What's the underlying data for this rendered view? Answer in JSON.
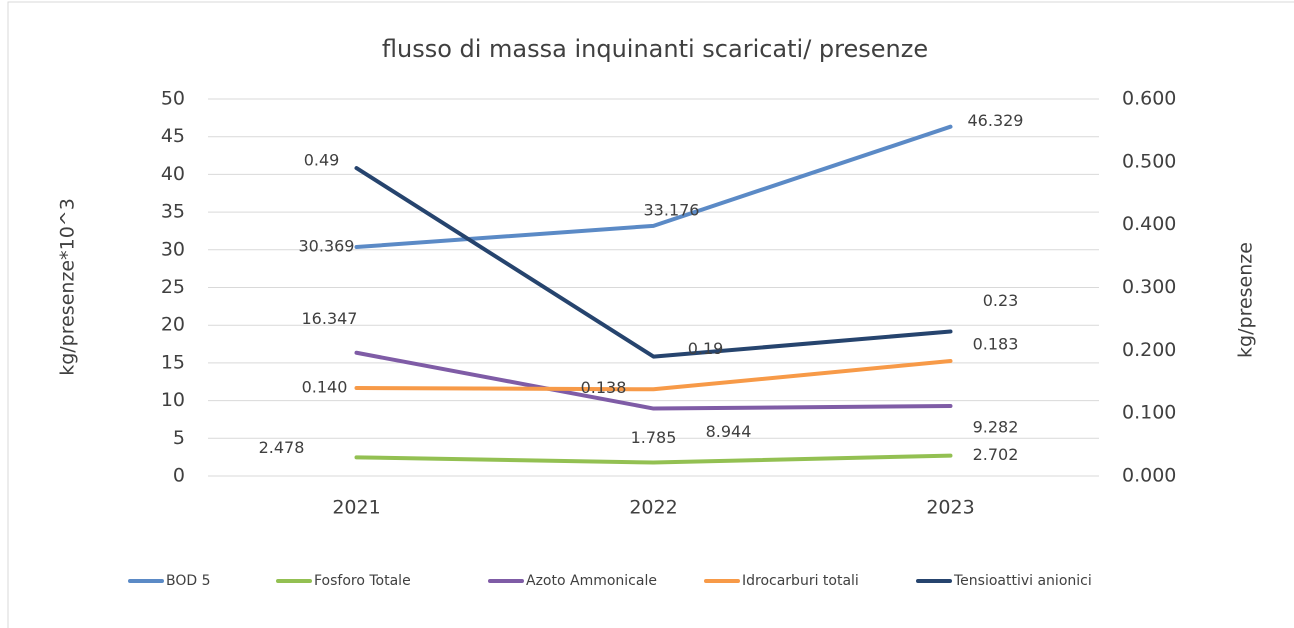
{
  "chart_data": {
    "type": "line",
    "title": "flusso di massa inquinanti scaricati/ presenze",
    "y_label": "kg/presenze*10^3",
    "y2_label": "kg/presenze",
    "categories": [
      "2021",
      "2022",
      "2023"
    ],
    "ylim": [
      0,
      50
    ],
    "yticks": [
      0,
      5,
      10,
      15,
      20,
      25,
      30,
      35,
      40,
      45,
      50
    ],
    "y2lim": [
      0,
      0.6
    ],
    "y2ticks": [
      {
        "value": 0,
        "label": "0.000"
      },
      {
        "value": 0.1,
        "label": "0.100"
      },
      {
        "value": 0.2,
        "label": "0.200"
      },
      {
        "value": 0.3,
        "label": "0.300"
      },
      {
        "value": 0.4,
        "label": "0.400"
      },
      {
        "value": 0.5,
        "label": "0.500"
      },
      {
        "value": 0.6,
        "label": "0.600"
      }
    ],
    "grid": true,
    "legend": "bottom",
    "series": [
      {
        "name": "BOD 5",
        "color": "#5b8ac6",
        "values": [
          30.369,
          33.176,
          46.329
        ]
      },
      {
        "name": "Fosforo Totale",
        "color": "#93c052",
        "values": [
          2.478,
          1.785,
          2.702
        ]
      },
      {
        "name": "Azoto Ammonicale",
        "color": "#7f5ca6",
        "values": [
          16.347,
          8.944,
          9.282
        ]
      },
      {
        "name": "Idrocarburi totali",
        "color": "#f79a48",
        "axis": "y2",
        "values": [
          0.14,
          0.138,
          0.183
        ],
        "value_labels": [
          "0.140",
          "0.138",
          "0.183"
        ]
      },
      {
        "name": "Tensioattivi anionici",
        "color": "#26446e",
        "axis": "y2",
        "values": [
          0.49,
          0.19,
          0.23
        ]
      }
    ]
  }
}
